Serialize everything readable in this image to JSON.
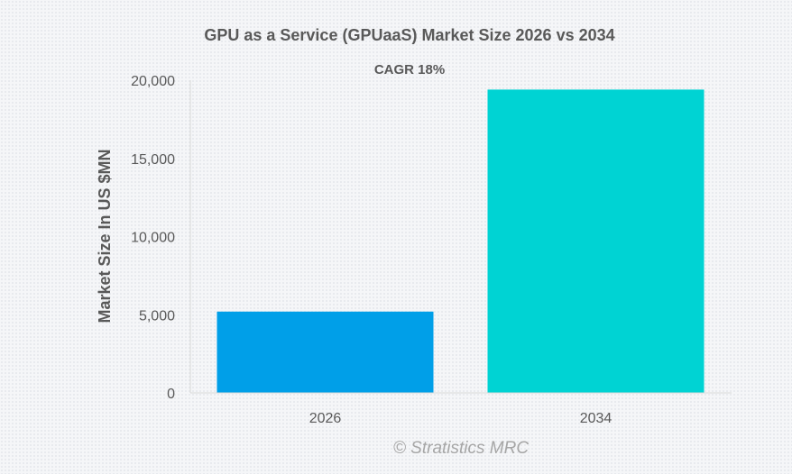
{
  "chart_data": {
    "type": "bar",
    "title": "GPU as a Service (GPUaaS) Market Size 2026 vs 2034",
    "subtitle": "CAGR 18%",
    "xlabel": "",
    "ylabel": "Market Size In US $MN",
    "categories": [
      "2026",
      "2034"
    ],
    "values": [
      5200,
      19400
    ],
    "colors": [
      "#009fe8",
      "#00d3d3"
    ],
    "ylim": [
      0,
      20000
    ],
    "yticks": [
      0,
      5000,
      10000,
      15000,
      20000
    ],
    "ytick_labels": [
      "0",
      "5,000",
      "10,000",
      "15,000",
      "20,000"
    ],
    "grid": false,
    "legend": "none",
    "watermark": "© Stratistics MRC"
  }
}
